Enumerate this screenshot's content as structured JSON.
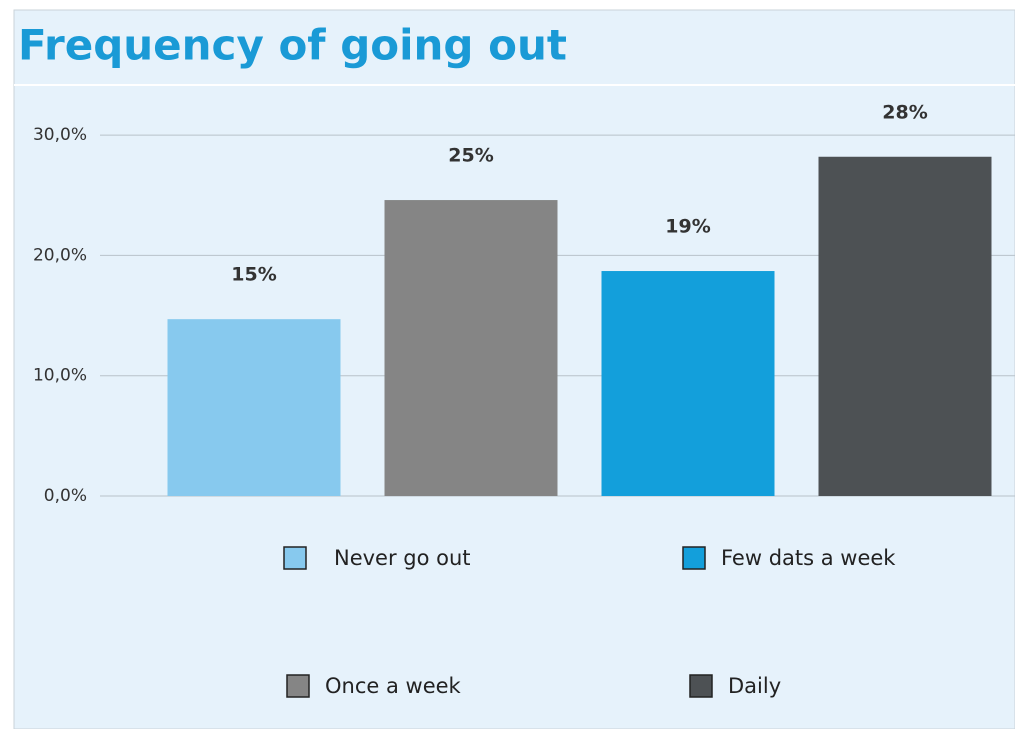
{
  "chart_data": {
    "type": "bar",
    "title": "Frequency of going out",
    "categories": [
      "Never go out",
      "Once a week",
      "Few dats a week",
      "Daily"
    ],
    "values": [
      14.7,
      24.6,
      18.7,
      28.2
    ],
    "value_labels": [
      "15%",
      "25%",
      "19%",
      "28%"
    ],
    "colors": [
      "#87c9ee",
      "#858585",
      "#139fdb",
      "#4d5154"
    ],
    "ylim": [
      0,
      34
    ],
    "yticks": [
      {
        "value": 0,
        "label": "0,0%"
      },
      {
        "value": 10,
        "label": "10,0%"
      },
      {
        "value": 20,
        "label": "20,0%"
      },
      {
        "value": 30,
        "label": "30,0%"
      }
    ],
    "grid": true
  }
}
